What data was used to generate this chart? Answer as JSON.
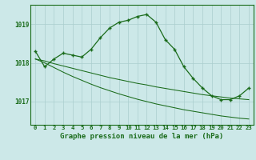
{
  "title": "Graphe pression niveau de la mer (hPa)",
  "bg_color": "#cce8e8",
  "grid_color": "#aacece",
  "line_color": "#1a6b1a",
  "x_labels": [
    "0",
    "1",
    "2",
    "3",
    "4",
    "5",
    "6",
    "7",
    "8",
    "9",
    "10",
    "11",
    "12",
    "13",
    "14",
    "15",
    "16",
    "17",
    "18",
    "19",
    "20",
    "21",
    "22",
    "23"
  ],
  "hours": [
    0,
    1,
    2,
    3,
    4,
    5,
    6,
    7,
    8,
    9,
    10,
    11,
    12,
    13,
    14,
    15,
    16,
    17,
    18,
    19,
    20,
    21,
    22,
    23
  ],
  "main_line": [
    1018.3,
    1017.9,
    1018.1,
    1018.25,
    1018.2,
    1018.15,
    1018.35,
    1018.65,
    1018.9,
    1019.05,
    1019.1,
    1019.2,
    1019.25,
    1019.05,
    1018.6,
    1018.35,
    1017.9,
    1017.6,
    1017.35,
    1017.15,
    1017.05,
    1017.05,
    1017.15,
    1017.35
  ],
  "upper_band": [
    1018.1,
    1018.05,
    1017.98,
    1017.92,
    1017.86,
    1017.8,
    1017.74,
    1017.68,
    1017.62,
    1017.57,
    1017.52,
    1017.47,
    1017.43,
    1017.38,
    1017.34,
    1017.3,
    1017.26,
    1017.22,
    1017.18,
    1017.15,
    1017.12,
    1017.09,
    1017.07,
    1017.05
  ],
  "lower_band": [
    1018.1,
    1018.0,
    1017.88,
    1017.76,
    1017.65,
    1017.55,
    1017.45,
    1017.36,
    1017.28,
    1017.2,
    1017.13,
    1017.06,
    1017.0,
    1016.94,
    1016.89,
    1016.84,
    1016.79,
    1016.75,
    1016.71,
    1016.67,
    1016.63,
    1016.6,
    1016.57,
    1016.55
  ],
  "ylim_min": 1016.4,
  "ylim_max": 1019.5,
  "yticks": [
    1017,
    1018,
    1019
  ],
  "figwidth": 3.2,
  "figheight": 2.0,
  "dpi": 100
}
